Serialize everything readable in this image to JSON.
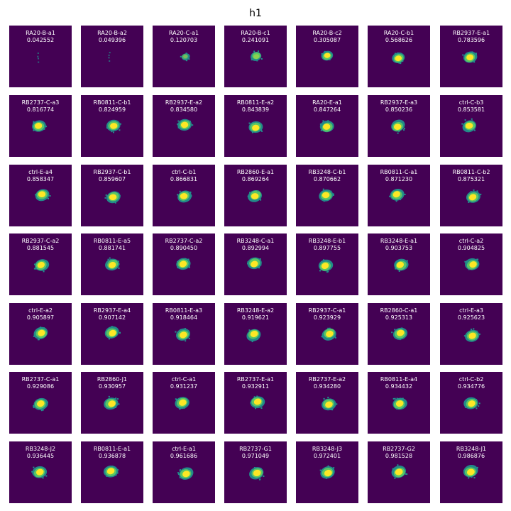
{
  "figure": {
    "title": "h1"
  },
  "colormap": {
    "background": "#440154",
    "low": "#21918c",
    "mid": "#5ec962",
    "high": "#fde725"
  },
  "panels": [
    {
      "label": "RA20-B-a1",
      "value": "0.042552"
    },
    {
      "label": "RA20-B-a2",
      "value": "0.049396"
    },
    {
      "label": "RA20-C-a1",
      "value": "0.120703"
    },
    {
      "label": "RA20-B-c1",
      "value": "0.241091"
    },
    {
      "label": "RA20-B-c2",
      "value": "0.305087"
    },
    {
      "label": "RA20-C-b1",
      "value": "0.568626"
    },
    {
      "label": "RB2937-E-a1",
      "value": "0.783596"
    },
    {
      "label": "RB2737-C-a3",
      "value": "0.816774"
    },
    {
      "label": "RB0811-C-b1",
      "value": "0.824959"
    },
    {
      "label": "RB2937-E-a2",
      "value": "0.834580"
    },
    {
      "label": "RB0811-E-a2",
      "value": "0.843839"
    },
    {
      "label": "RA20-E-a1",
      "value": "0.847264"
    },
    {
      "label": "RB2937-E-a3",
      "value": "0.850236"
    },
    {
      "label": "ctrl-C-b3",
      "value": "0.853581"
    },
    {
      "label": "ctrl-E-a4",
      "value": "0.858347"
    },
    {
      "label": "RB2937-C-b1",
      "value": "0.859607"
    },
    {
      "label": "ctrl-C-b1",
      "value": "0.866831"
    },
    {
      "label": "RB2860-E-a1",
      "value": "0.869264"
    },
    {
      "label": "RB3248-C-b1",
      "value": "0.870662"
    },
    {
      "label": "RB0811-C-a1",
      "value": "0.871230"
    },
    {
      "label": "RB0811-C-b2",
      "value": "0.875321"
    },
    {
      "label": "RB2937-C-a2",
      "value": "0.881545"
    },
    {
      "label": "RB0811-E-a5",
      "value": "0.881741"
    },
    {
      "label": "RB2737-C-a2",
      "value": "0.890450"
    },
    {
      "label": "RB3248-C-a1",
      "value": "0.892994"
    },
    {
      "label": "RB3248-E-b1",
      "value": "0.897755"
    },
    {
      "label": "RB3248-E-a1",
      "value": "0.903753"
    },
    {
      "label": "ctrl-C-a2",
      "value": "0.904825"
    },
    {
      "label": "ctrl-E-a2",
      "value": "0.905897"
    },
    {
      "label": "RB2937-E-a4",
      "value": "0.907142"
    },
    {
      "label": "RB0811-E-a3",
      "value": "0.918464"
    },
    {
      "label": "RB3248-E-a2",
      "value": "0.919621"
    },
    {
      "label": "RB2937-C-a1",
      "value": "0.923929"
    },
    {
      "label": "RB2860-C-a1",
      "value": "0.925313"
    },
    {
      "label": "ctrl-E-a3",
      "value": "0.925623"
    },
    {
      "label": "RB2737-C-a1",
      "value": "0.929086"
    },
    {
      "label": "RB2860-J1",
      "value": "0.930957"
    },
    {
      "label": "ctrl-C-a1",
      "value": "0.931237"
    },
    {
      "label": "RB2737-E-a1",
      "value": "0.932911"
    },
    {
      "label": "RB2737-E-a2",
      "value": "0.934280"
    },
    {
      "label": "RB0811-E-a4",
      "value": "0.934432"
    },
    {
      "label": "ctrl-C-b2",
      "value": "0.934776"
    },
    {
      "label": "RB3248-J2",
      "value": "0.936445"
    },
    {
      "label": "RB0811-E-a1",
      "value": "0.936878"
    },
    {
      "label": "ctrl-E-a1",
      "value": "0.961686"
    },
    {
      "label": "RB2737-G1",
      "value": "0.971049"
    },
    {
      "label": "RB3248-J3",
      "value": "0.972401"
    },
    {
      "label": "RB2737-G2",
      "value": "0.981528"
    },
    {
      "label": "RB3248-J1",
      "value": "0.986876"
    }
  ]
}
